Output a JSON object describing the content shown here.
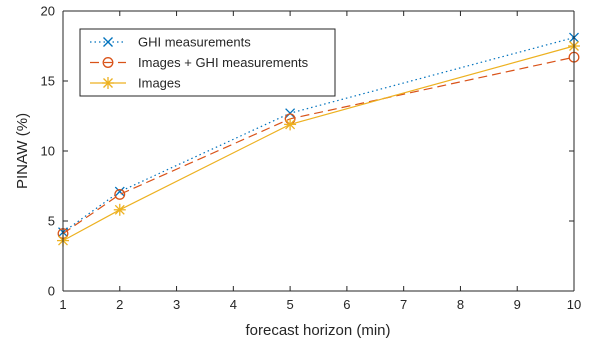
{
  "chart_data": {
    "type": "line",
    "xlabel": "forecast horizon (min)",
    "ylabel": "PINAW (%)",
    "xlim": [
      1,
      10
    ],
    "ylim": [
      0,
      20
    ],
    "xticks": [
      1,
      2,
      3,
      4,
      5,
      6,
      7,
      8,
      9,
      10
    ],
    "yticks": [
      0,
      5,
      10,
      15,
      20
    ],
    "grid": false,
    "legend_position": "top-left",
    "x": [
      1,
      2,
      5,
      10
    ],
    "series": [
      {
        "name": "GHI measurements",
        "values": [
          4.2,
          7.1,
          12.7,
          18.1
        ],
        "color": "#0072BD",
        "line_style": "dotted",
        "marker": "x"
      },
      {
        "name": "Images + GHI measurements",
        "values": [
          4.1,
          6.9,
          12.3,
          16.7
        ],
        "color": "#D95319",
        "line_style": "dashed",
        "marker": "circle"
      },
      {
        "name": "Images",
        "values": [
          3.6,
          5.8,
          11.9,
          17.5
        ],
        "color": "#EDB120",
        "line_style": "solid",
        "marker": "asterisk"
      }
    ]
  }
}
